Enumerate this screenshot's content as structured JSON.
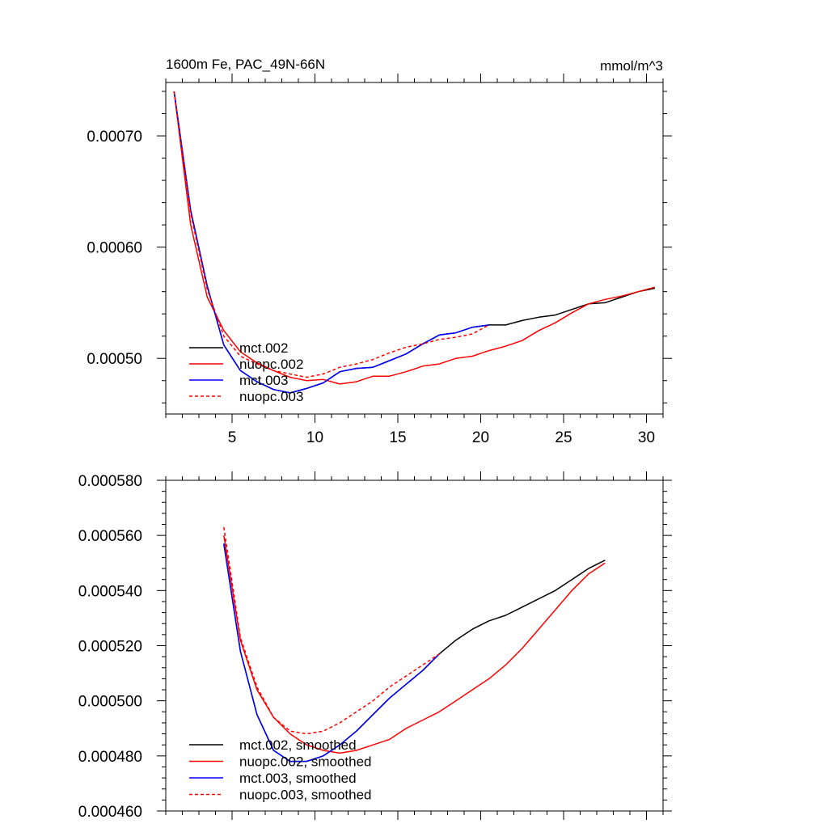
{
  "colors": {
    "mct.002": "#000000",
    "nuopc.002": "#ff0000",
    "mct.003": "#0000ff",
    "nuopc.003": "#ff0000",
    "axis": "#000000",
    "background": "#ffffff"
  },
  "chart_data": [
    {
      "type": "line",
      "title": "1600m Fe, PAC_49N-66N",
      "units_label": "mmol/m^3",
      "xlabel": "",
      "ylabel": "",
      "xlim": [
        1,
        31
      ],
      "ylim": [
        0.00045,
        0.000748
      ],
      "grid": false,
      "legend_placement": "bottom-left",
      "x_ticks": [
        5,
        10,
        15,
        20,
        25,
        30
      ],
      "x_tick_labels": [
        "5",
        "10",
        "15",
        "20",
        "25",
        "30"
      ],
      "y_ticks": [
        0.0005,
        0.0006,
        0.0007
      ],
      "y_tick_labels": [
        "0.00050",
        "0.00060",
        "0.00070"
      ],
      "series": [
        {
          "name": "mct.002",
          "style": "solid",
          "x": [
            1.5,
            2.5,
            3.5,
            4.5,
            5.5,
            6.5,
            7.5,
            8.5,
            9.5,
            10.5,
            11.5,
            12.5,
            13.5,
            14.5,
            15.5,
            16.5,
            17.5,
            18.5,
            19.5,
            20.5,
            21.5,
            22.5,
            23.5,
            24.5,
            25.5,
            26.5,
            27.5,
            28.5,
            29.5,
            30.5
          ],
          "values": [
            0.00074,
            0.000633,
            0.000565,
            0.000512,
            0.000489,
            0.000479,
            0.000472,
            0.000469,
            0.000473,
            0.000478,
            0.000488,
            0.000491,
            0.000492,
            0.000498,
            0.000504,
            0.000513,
            0.000521,
            0.000523,
            0.000528,
            0.00053,
            0.00053,
            0.000534,
            0.000537,
            0.000539,
            0.000544,
            0.000549,
            0.00055,
            0.000555,
            0.00056,
            0.000563
          ]
        },
        {
          "name": "nuopc.002",
          "style": "solid",
          "x": [
            1.5,
            2.5,
            3.5,
            4.5,
            5.5,
            6.5,
            7.5,
            8.5,
            9.5,
            10.5,
            11.5,
            12.5,
            13.5,
            14.5,
            15.5,
            16.5,
            17.5,
            18.5,
            19.5,
            20.5,
            21.5,
            22.5,
            23.5,
            24.5,
            25.5,
            26.5,
            27.5,
            28.5,
            29.5,
            30.5
          ],
          "values": [
            0.00074,
            0.00062,
            0.000555,
            0.000525,
            0.000506,
            0.000496,
            0.000489,
            0.000483,
            0.00048,
            0.000481,
            0.000477,
            0.000479,
            0.000484,
            0.000484,
            0.000488,
            0.000493,
            0.000495,
            0.0005,
            0.000502,
            0.000507,
            0.000511,
            0.000516,
            0.000525,
            0.000532,
            0.000541,
            0.000549,
            0.000553,
            0.000556,
            0.00056,
            0.000564
          ]
        },
        {
          "name": "mct.003",
          "style": "solid",
          "x": [
            1.5,
            2.5,
            3.5,
            4.5,
            5.5,
            6.5,
            7.5,
            8.5,
            9.5,
            10.5,
            11.5,
            12.5,
            13.5,
            14.5,
            15.5,
            16.5,
            17.5,
            18.5,
            19.5,
            20.5
          ],
          "values": [
            0.00074,
            0.000633,
            0.000565,
            0.000512,
            0.000489,
            0.000479,
            0.000472,
            0.000469,
            0.000473,
            0.000478,
            0.000488,
            0.000491,
            0.000492,
            0.000498,
            0.000504,
            0.000513,
            0.000521,
            0.000523,
            0.000528,
            0.00053
          ]
        },
        {
          "name": "nuopc.003",
          "style": "dashed",
          "x": [
            1.5,
            2.5,
            3.5,
            4.5,
            5.5,
            6.5,
            7.5,
            8.5,
            9.5,
            10.5,
            11.5,
            12.5,
            13.5,
            14.5,
            15.5,
            16.5,
            17.5,
            18.5,
            19.5,
            20.5
          ],
          "values": [
            0.00074,
            0.00063,
            0.000562,
            0.00052,
            0.000502,
            0.000495,
            0.000489,
            0.000486,
            0.000483,
            0.000486,
            0.000492,
            0.000495,
            0.000499,
            0.000505,
            0.00051,
            0.000513,
            0.000517,
            0.000519,
            0.000522,
            0.00053
          ]
        }
      ]
    },
    {
      "type": "line",
      "title": "",
      "xlabel": "",
      "ylabel": "",
      "xlim": [
        1,
        31
      ],
      "ylim": [
        0.00046,
        0.00058
      ],
      "grid": false,
      "legend_placement": "bottom-left",
      "x_ticks": [
        5,
        10,
        15,
        20,
        25,
        30
      ],
      "x_tick_labels": [],
      "y_ticks": [
        0.00046,
        0.00048,
        0.0005,
        0.00052,
        0.00054,
        0.00056,
        0.00058
      ],
      "y_tick_labels": [
        "0.000460",
        "0.000480",
        "0.000500",
        "0.000520",
        "0.000540",
        "0.000560",
        "0.000580"
      ],
      "series": [
        {
          "name": "mct.002, smoothed",
          "style": "solid",
          "x": [
            4.5,
            5.5,
            6.5,
            7.5,
            8.5,
            9.5,
            10.5,
            11.5,
            12.5,
            13.5,
            14.5,
            15.5,
            16.5,
            17.5,
            18.5,
            19.5,
            20.5,
            21.5,
            22.5,
            23.5,
            24.5,
            25.5,
            26.5,
            27.5
          ],
          "values": [
            0.000557,
            0.000518,
            0.000495,
            0.000482,
            0.000478,
            0.000478,
            0.00048,
            0.000484,
            0.000489,
            0.000495,
            0.000501,
            0.000506,
            0.000511,
            0.000517,
            0.000522,
            0.000526,
            0.000529,
            0.000531,
            0.000534,
            0.000537,
            0.00054,
            0.000544,
            0.000548,
            0.000551
          ]
        },
        {
          "name": "nuopc.002, smoothed",
          "style": "solid",
          "x": [
            4.5,
            5.5,
            6.5,
            7.5,
            8.5,
            9.5,
            10.5,
            11.5,
            12.5,
            13.5,
            14.5,
            15.5,
            16.5,
            17.5,
            18.5,
            19.5,
            20.5,
            21.5,
            22.5,
            23.5,
            24.5,
            25.5,
            26.5,
            27.5
          ],
          "values": [
            0.00056,
            0.000522,
            0.000504,
            0.000494,
            0.000488,
            0.000484,
            0.000482,
            0.000481,
            0.000482,
            0.000484,
            0.000486,
            0.00049,
            0.000493,
            0.000496,
            0.0005,
            0.000504,
            0.000508,
            0.000513,
            0.000519,
            0.000526,
            0.000533,
            0.00054,
            0.000546,
            0.00055
          ]
        },
        {
          "name": "mct.003, smoothed",
          "style": "solid",
          "x": [
            4.5,
            5.5,
            6.5,
            7.5,
            8.5,
            9.5,
            10.5,
            11.5,
            12.5,
            13.5,
            14.5,
            15.5,
            16.5,
            17.5
          ],
          "values": [
            0.000557,
            0.000518,
            0.000495,
            0.000482,
            0.000478,
            0.000478,
            0.00048,
            0.000484,
            0.000489,
            0.000495,
            0.000501,
            0.000506,
            0.000511,
            0.000517
          ]
        },
        {
          "name": "nuopc.003, smoothed",
          "style": "dashed",
          "x": [
            4.5,
            5.5,
            6.5,
            7.5,
            8.5,
            9.5,
            10.5,
            11.5,
            12.5,
            13.5,
            14.5,
            15.5,
            16.5,
            17.5
          ],
          "values": [
            0.000563,
            0.000523,
            0.000505,
            0.000494,
            0.000489,
            0.000488,
            0.000489,
            0.000492,
            0.000496,
            0.0005,
            0.000505,
            0.000509,
            0.000513,
            0.000517
          ]
        }
      ]
    }
  ]
}
